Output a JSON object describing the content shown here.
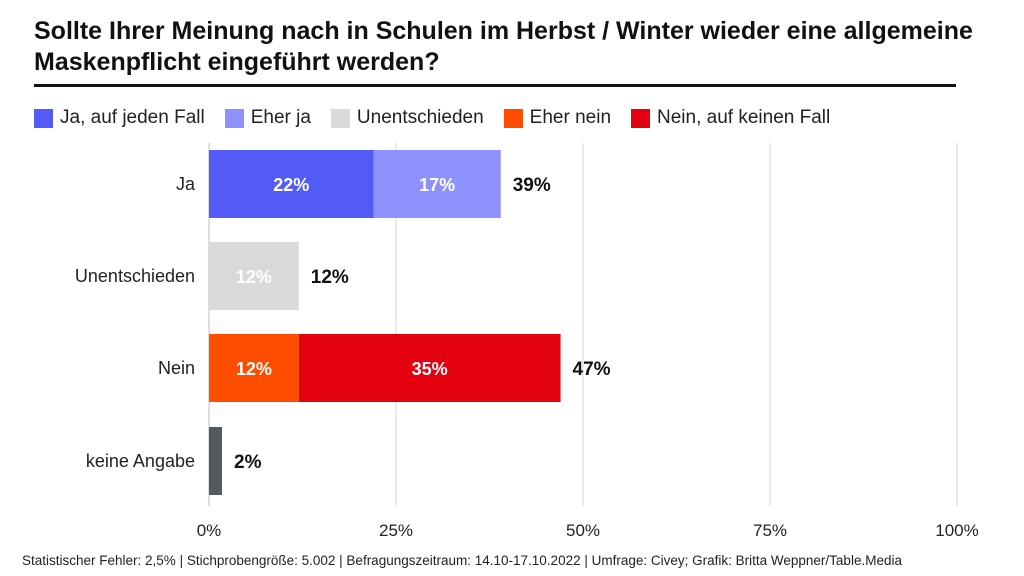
{
  "chart_data": {
    "type": "bar",
    "orientation": "horizontal",
    "stacked": true,
    "title": "Sollte Ihrer Meinung nach in Schulen im Herbst / Winter wieder eine allgemeine Maskenpflicht eingeführt werden?",
    "categories": [
      "Ja",
      "Unentschieden",
      "Nein",
      "keine Angabe"
    ],
    "series": [
      {
        "name": "Ja, auf jeden Fall",
        "color": "#525bf5",
        "values": [
          22,
          0,
          0,
          0
        ]
      },
      {
        "name": "Eher ja",
        "color": "#8c91fb",
        "values": [
          17,
          0,
          0,
          0
        ]
      },
      {
        "name": "Unentschieden",
        "color": "#d9d9d9",
        "values": [
          0,
          12,
          0,
          0
        ]
      },
      {
        "name": "Eher nein",
        "color": "#ff4d00",
        "values": [
          0,
          0,
          12,
          0
        ]
      },
      {
        "name": "Nein, auf keinen Fall",
        "color": "#e3000f",
        "values": [
          0,
          0,
          35,
          0
        ]
      }
    ],
    "other": {
      "color": "#555a5f",
      "values": [
        0,
        0,
        0,
        2
      ]
    },
    "totals": [
      "39%",
      "12%",
      "47%",
      "2%"
    ],
    "xlim": [
      0,
      100
    ],
    "xticks": [
      0,
      25,
      50,
      75,
      100
    ],
    "xtick_labels": [
      "0%",
      "25%",
      "50%",
      "75%",
      "100%"
    ],
    "grid": true,
    "legend_position": "top"
  },
  "footer": "Statistischer Fehler: 2,5% | Stichprobengröße: 5.002 | Befragungszeitraum: 14.10-17.10.2022 | Umfrage: Civey; Grafik: Britta Weppner/Table.Media"
}
